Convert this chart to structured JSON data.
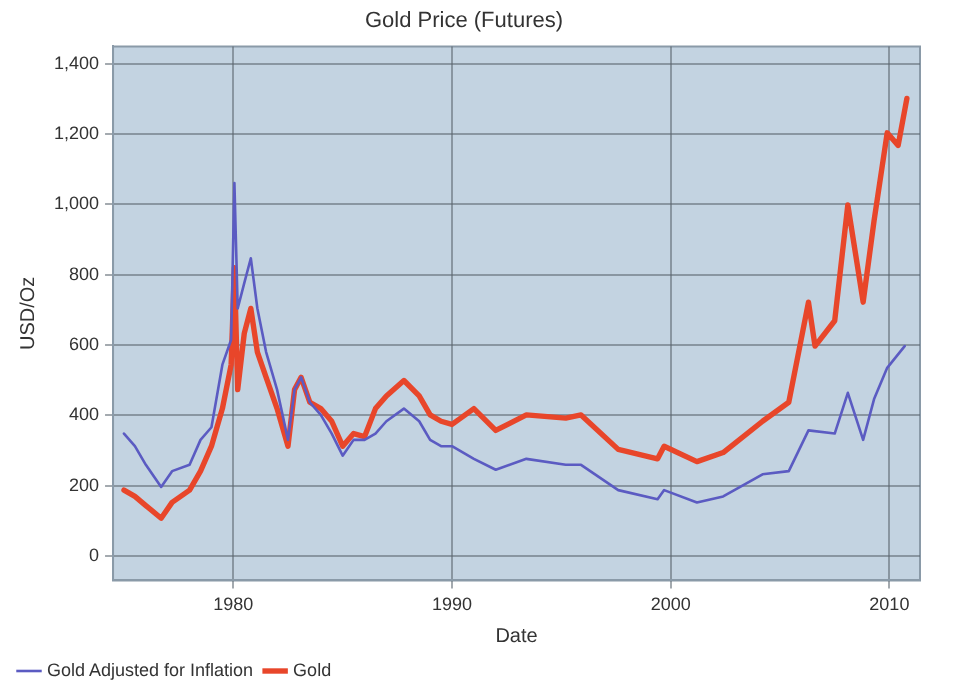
{
  "chart_data": {
    "type": "line",
    "title": "Gold Price (Futures)",
    "xlabel": "Date",
    "ylabel": "USD/Oz",
    "xlim": [
      1974.5,
      2011.4
    ],
    "xticks": [
      1980,
      1990,
      2000,
      2010
    ],
    "ylim": [
      -70,
      1450
    ],
    "yticks": [
      0,
      200,
      400,
      600,
      800,
      {
        "value": 1000,
        "label": "1,000"
      },
      {
        "value": 1200,
        "label": "1,200"
      },
      {
        "value": 1400,
        "label": "1,400"
      }
    ],
    "grid": true,
    "legend": "bottom left",
    "marker": "none",
    "line_style": "solid",
    "series": [
      {
        "name": "Gold Adjusted for Inflation",
        "color": "#5b5bc2",
        "x": [
          1975.0,
          1975.5,
          1976.0,
          1976.7,
          1977.2,
          1978.0,
          1978.5,
          1979.0,
          1979.5,
          1979.9,
          1980.05,
          1980.2,
          1980.5,
          1980.8,
          1981.1,
          1981.5,
          1982.0,
          1982.5,
          1982.8,
          1983.1,
          1983.5,
          1984.0,
          1984.5,
          1985.0,
          1985.5,
          1986.0,
          1986.5,
          1987.0,
          1987.8,
          1988.5,
          1989.0,
          1989.5,
          1990.0,
          1991.0,
          1992.0,
          1993.4,
          1995.2,
          1995.9,
          1997.6,
          1999.4,
          1999.7,
          2001.2,
          2002.4,
          2004.2,
          2005.4,
          2006.3,
          2007.5,
          2008.1,
          2008.8,
          2009.3,
          2009.9,
          2010.7
        ],
        "values": [
          348,
          312,
          259,
          196,
          241,
          259,
          330,
          366,
          544,
          615,
          1061,
          704,
          776,
          847,
          704,
          580,
          473,
          330,
          473,
          508,
          437,
          401,
          348,
          285,
          330,
          330,
          348,
          383,
          419,
          383,
          330,
          312,
          312,
          276,
          245,
          276,
          259,
          259,
          187,
          161,
          187,
          152,
          169,
          232,
          241,
          357,
          348,
          464,
          330,
          446,
          535,
          597
        ]
      },
      {
        "name": "Gold",
        "color": "#e8462a",
        "x": [
          1975.0,
          1975.5,
          1976.0,
          1976.7,
          1977.2,
          1978.0,
          1978.5,
          1979.0,
          1979.5,
          1979.9,
          1980.05,
          1980.2,
          1980.5,
          1980.8,
          1981.1,
          1981.5,
          1982.0,
          1982.5,
          1982.8,
          1983.1,
          1983.5,
          1984.0,
          1984.5,
          1985.0,
          1985.5,
          1986.0,
          1986.5,
          1987.0,
          1987.8,
          1988.5,
          1989.0,
          1989.5,
          1990.0,
          1991.0,
          1992.0,
          1993.4,
          1995.2,
          1995.9,
          1997.6,
          1999.4,
          1999.7,
          2001.2,
          2002.4,
          2004.2,
          2005.4,
          2006.3,
          2006.6,
          2007.5,
          2008.1,
          2008.8,
          2009.3,
          2009.9,
          2010.4,
          2010.8
        ],
        "values": [
          187,
          169,
          143,
          107,
          152,
          187,
          241,
          312,
          419,
          544,
          820,
          473,
          633,
          704,
          580,
          508,
          419,
          312,
          473,
          508,
          437,
          419,
          383,
          312,
          348,
          339,
          419,
          455,
          499,
          455,
          401,
          383,
          374,
          419,
          357,
          401,
          392,
          401,
          303,
          276,
          312,
          268,
          294,
          383,
          437,
          722,
          597,
          669,
          999,
          722,
          954,
          1204,
          1168,
          1302
        ]
      }
    ]
  }
}
